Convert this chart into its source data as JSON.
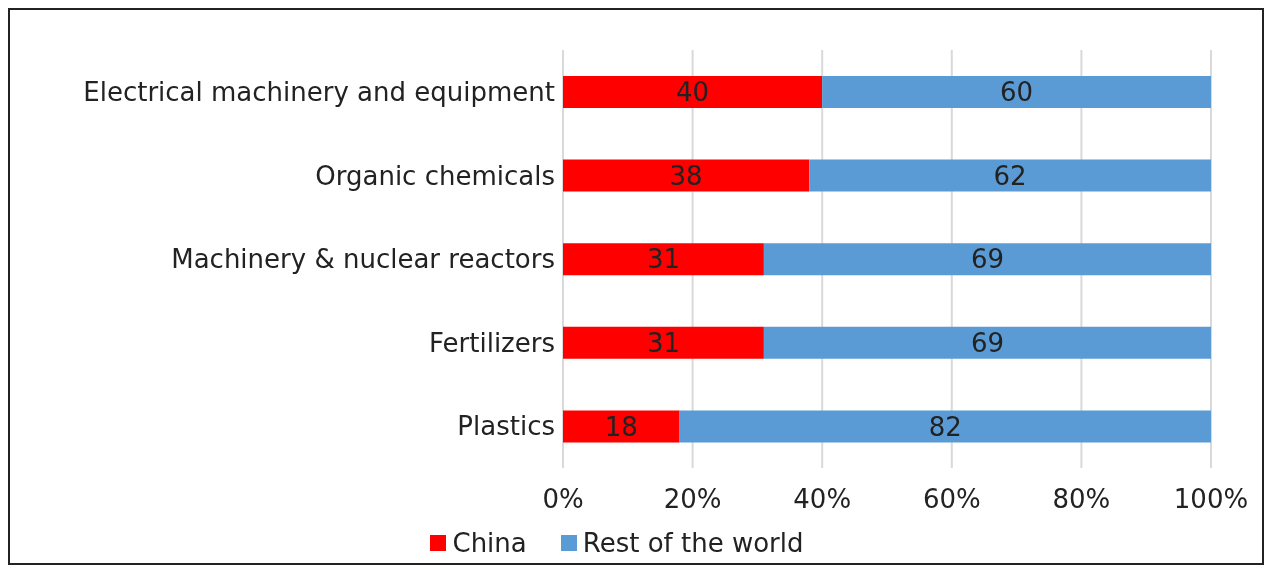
{
  "chart_data": {
    "type": "bar",
    "orientation": "horizontal",
    "stacked": true,
    "categories": [
      "Electrical machinery and equipment",
      "Organic chemicals",
      "Machinery & nuclear reactors",
      "Fertilizers",
      "Plastics"
    ],
    "series": [
      {
        "name": "China",
        "color": "#ff0000",
        "values": [
          40,
          38,
          31,
          31,
          18
        ]
      },
      {
        "name": "Rest of the world",
        "color": "#5b9bd5",
        "values": [
          60,
          62,
          69,
          69,
          82
        ]
      }
    ],
    "xlim": [
      0,
      100
    ],
    "xticks": [
      {
        "value": 0,
        "label": "0%"
      },
      {
        "value": 20,
        "label": "20%"
      },
      {
        "value": 40,
        "label": "40%"
      },
      {
        "value": 60,
        "label": "60%"
      },
      {
        "value": 80,
        "label": "80%"
      },
      {
        "value": 100,
        "label": "100%"
      }
    ],
    "grid": "x",
    "legend": "bottom",
    "data_labels": true
  }
}
